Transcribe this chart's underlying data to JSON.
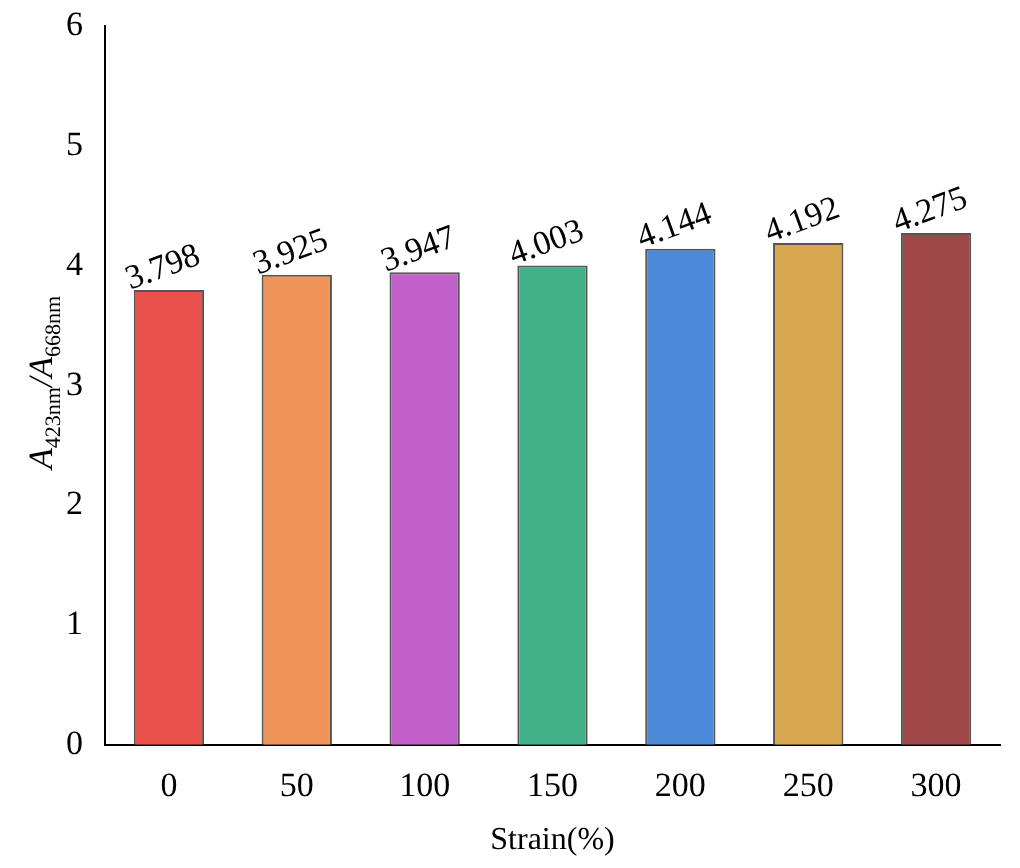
{
  "chart_data": {
    "type": "bar",
    "xlabel": "Strain(%)",
    "ylabel": "A$_{423nm}$/A$_{668nm}$",
    "categories": [
      "0",
      "50",
      "100",
      "150",
      "200",
      "250",
      "300"
    ],
    "values": [
      3.798,
      3.925,
      3.947,
      4.003,
      4.144,
      4.192,
      4.275
    ],
    "colors": [
      "#e8524a",
      "#f0955a",
      "#c060c8",
      "#40b088",
      "#4a8ad8",
      "#d8a850",
      "#a04848"
    ],
    "ylim": [
      0,
      6
    ],
    "yticks": [
      0,
      1,
      2,
      3,
      4,
      5,
      6
    ],
    "grid": false,
    "legend": false,
    "data_labels": true
  }
}
